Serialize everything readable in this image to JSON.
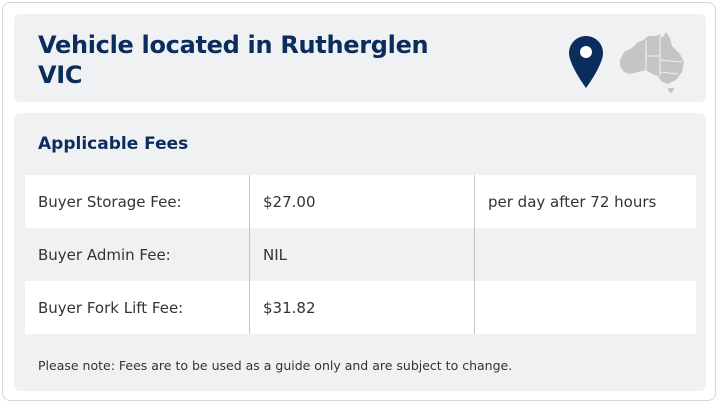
{
  "header": {
    "title_line1": "Vehicle located in Rutherglen",
    "title_line2": "VIC",
    "location_pin_color": "#0b2d5e"
  },
  "fees": {
    "title": "Applicable Fees",
    "rows": [
      {
        "label": "Buyer Storage Fee:",
        "amount": "$27.00",
        "note": "per day after 72 hours"
      },
      {
        "label": "Buyer Admin Fee:",
        "amount": "NIL",
        "note": ""
      },
      {
        "label": "Buyer Fork Lift Fee:",
        "amount": "$31.82",
        "note": ""
      }
    ],
    "disclaimer": "Please note: Fees are to be used as a guide only and are subject to change."
  }
}
